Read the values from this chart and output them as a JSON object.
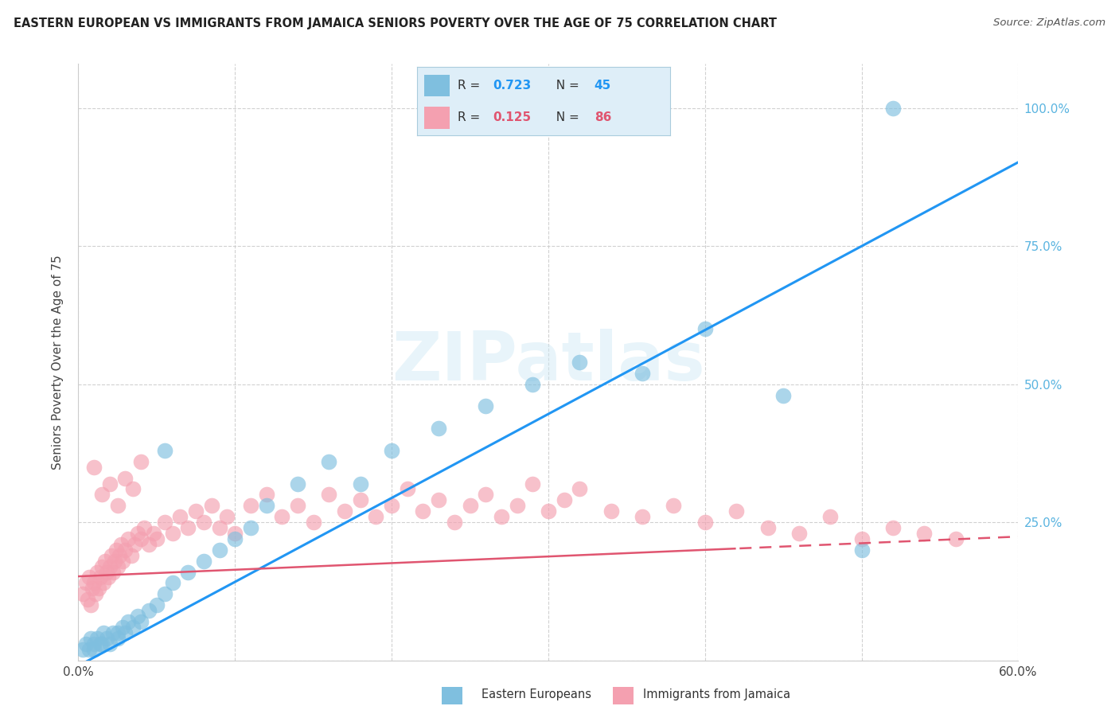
{
  "title": "EASTERN EUROPEAN VS IMMIGRANTS FROM JAMAICA SENIORS POVERTY OVER THE AGE OF 75 CORRELATION CHART",
  "source": "Source: ZipAtlas.com",
  "ylabel": "Seniors Poverty Over the Age of 75",
  "xlim": [
    0.0,
    0.6
  ],
  "ylim": [
    0.0,
    1.08
  ],
  "series1_label": "Eastern Europeans",
  "series1_color": "#7fbfdf",
  "series1_line_color": "#2196F3",
  "series1_R": "0.723",
  "series1_N": "45",
  "series2_label": "Immigrants from Jamaica",
  "series2_color": "#f4a0b0",
  "series2_line_color": "#e05570",
  "series2_R": "0.125",
  "series2_N": "86",
  "right_tick_color": "#5ab4e0",
  "watermark": "ZIPatlas",
  "ee_x": [
    0.003,
    0.005,
    0.007,
    0.008,
    0.01,
    0.012,
    0.014,
    0.016,
    0.018,
    0.02,
    0.022,
    0.025,
    0.028,
    0.03,
    0.032,
    0.035,
    0.038,
    0.04,
    0.045,
    0.05,
    0.055,
    0.06,
    0.07,
    0.08,
    0.09,
    0.1,
    0.11,
    0.12,
    0.14,
    0.16,
    0.18,
    0.2,
    0.23,
    0.26,
    0.29,
    0.32,
    0.36,
    0.4,
    0.45,
    0.5,
    0.01,
    0.015,
    0.025,
    0.055,
    0.52
  ],
  "ee_y": [
    0.02,
    0.03,
    0.02,
    0.04,
    0.03,
    0.04,
    0.03,
    0.05,
    0.04,
    0.03,
    0.05,
    0.04,
    0.06,
    0.05,
    0.07,
    0.06,
    0.08,
    0.07,
    0.09,
    0.1,
    0.12,
    0.14,
    0.16,
    0.18,
    0.2,
    0.22,
    0.24,
    0.28,
    0.32,
    0.36,
    0.32,
    0.38,
    0.42,
    0.46,
    0.5,
    0.54,
    0.52,
    0.6,
    0.48,
    0.2,
    0.02,
    0.03,
    0.05,
    0.38,
    1.0
  ],
  "jam_x": [
    0.003,
    0.005,
    0.006,
    0.007,
    0.008,
    0.009,
    0.01,
    0.011,
    0.012,
    0.013,
    0.014,
    0.015,
    0.016,
    0.017,
    0.018,
    0.019,
    0.02,
    0.021,
    0.022,
    0.023,
    0.024,
    0.025,
    0.026,
    0.027,
    0.028,
    0.03,
    0.032,
    0.034,
    0.036,
    0.038,
    0.04,
    0.042,
    0.045,
    0.048,
    0.05,
    0.055,
    0.06,
    0.065,
    0.07,
    0.075,
    0.08,
    0.085,
    0.09,
    0.095,
    0.1,
    0.11,
    0.12,
    0.13,
    0.14,
    0.15,
    0.16,
    0.17,
    0.18,
    0.19,
    0.2,
    0.21,
    0.22,
    0.23,
    0.24,
    0.25,
    0.26,
    0.27,
    0.28,
    0.29,
    0.3,
    0.31,
    0.32,
    0.34,
    0.36,
    0.38,
    0.4,
    0.42,
    0.44,
    0.46,
    0.48,
    0.5,
    0.52,
    0.54,
    0.56,
    0.01,
    0.015,
    0.02,
    0.025,
    0.03,
    0.035,
    0.04
  ],
  "jam_y": [
    0.12,
    0.14,
    0.11,
    0.15,
    0.1,
    0.13,
    0.14,
    0.12,
    0.16,
    0.13,
    0.15,
    0.17,
    0.14,
    0.18,
    0.16,
    0.15,
    0.17,
    0.19,
    0.16,
    0.18,
    0.2,
    0.17,
    0.19,
    0.21,
    0.18,
    0.2,
    0.22,
    0.19,
    0.21,
    0.23,
    0.22,
    0.24,
    0.21,
    0.23,
    0.22,
    0.25,
    0.23,
    0.26,
    0.24,
    0.27,
    0.25,
    0.28,
    0.24,
    0.26,
    0.23,
    0.28,
    0.3,
    0.26,
    0.28,
    0.25,
    0.3,
    0.27,
    0.29,
    0.26,
    0.28,
    0.31,
    0.27,
    0.29,
    0.25,
    0.28,
    0.3,
    0.26,
    0.28,
    0.32,
    0.27,
    0.29,
    0.31,
    0.27,
    0.26,
    0.28,
    0.25,
    0.27,
    0.24,
    0.23,
    0.26,
    0.22,
    0.24,
    0.23,
    0.22,
    0.35,
    0.3,
    0.32,
    0.28,
    0.33,
    0.31,
    0.36
  ]
}
